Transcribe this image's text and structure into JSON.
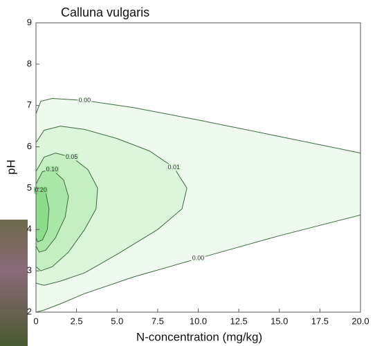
{
  "chart_data": {
    "type": "contour",
    "title": "Calluna vulgaris",
    "xlabel": "N-concentration (mg/kg)",
    "ylabel": "pH",
    "xlim": [
      0,
      20
    ],
    "ylim": [
      2,
      9
    ],
    "xticks": [
      0,
      2.5,
      {
        "value": 5,
        "label": "5.0"
      },
      7.5,
      {
        "value": 10,
        "label": "10.0"
      },
      12.5,
      {
        "value": 15,
        "label": "15.0"
      },
      17.5,
      {
        "value": 20,
        "label": "20.0"
      }
    ],
    "yticks": [
      2,
      3,
      4,
      5,
      6,
      7,
      8,
      9
    ],
    "contours": [
      {
        "label": "0.00",
        "color": "#eefaee",
        "x": [
          0,
          0.3,
          1,
          3,
          6,
          10,
          15,
          20,
          20,
          15,
          10,
          6,
          3,
          1.5,
          0.5,
          0
        ],
        "y": [
          6.8,
          7.1,
          7.17,
          7.12,
          6.95,
          6.65,
          6.25,
          5.85,
          4.35,
          3.85,
          3.3,
          2.85,
          2.45,
          2.2,
          2.05,
          2.0
        ]
      },
      {
        "label": "0.01",
        "color": "#dbf6db",
        "x": [
          0,
          0.5,
          1.5,
          3,
          5,
          7,
          8.5,
          9.3,
          9,
          7.5,
          5,
          3,
          1.5,
          0.5,
          0
        ],
        "y": [
          6.1,
          6.4,
          6.5,
          6.42,
          6.2,
          5.9,
          5.5,
          5.0,
          4.5,
          4.0,
          3.4,
          2.95,
          2.75,
          2.65,
          2.7
        ]
      },
      {
        "label": "0.05",
        "color": "#c3efc3",
        "x": [
          0,
          0.5,
          1.2,
          2.2,
          3.2,
          3.8,
          3.7,
          3,
          2,
          1,
          0.3,
          0
        ],
        "y": [
          5.4,
          5.75,
          5.85,
          5.75,
          5.45,
          5.0,
          4.5,
          4.0,
          3.45,
          3.1,
          3.0,
          3.1
        ]
      },
      {
        "label": "0.10",
        "color": "#a9e7a9",
        "x": [
          0,
          0.4,
          1,
          1.7,
          2,
          1.8,
          1.2,
          0.6,
          0.2,
          0
        ],
        "y": [
          5.1,
          5.4,
          5.45,
          5.2,
          4.8,
          4.3,
          3.8,
          3.5,
          3.45,
          3.6
        ]
      },
      {
        "label": "0.20",
        "color": "#8cdc8c",
        "x": [
          0,
          0.3,
          0.6,
          0.8,
          0.7,
          0.4,
          0.1,
          0
        ],
        "y": [
          4.85,
          4.95,
          4.9,
          4.5,
          4.0,
          3.75,
          3.7,
          3.8
        ]
      }
    ]
  }
}
